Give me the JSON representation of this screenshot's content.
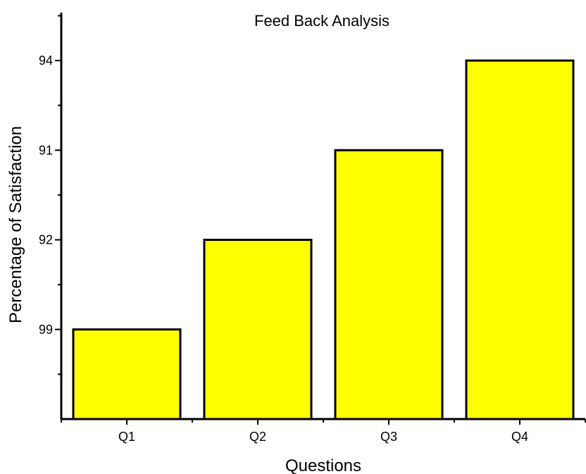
{
  "chart_data": {
    "type": "bar",
    "title": "Feed Back Analysis",
    "xlabel": "Questions",
    "ylabel": "Percentage of Satisfaction",
    "categories": [
      "Q1",
      "Q2",
      "Q3",
      "Q4"
    ],
    "values": [
      1,
      2,
      3,
      4
    ],
    "ylim": [
      0,
      4
    ],
    "yticks": [
      1,
      2,
      3,
      4
    ],
    "ytick_labels": [
      "99",
      "92",
      "91",
      "94"
    ],
    "grid": false,
    "legend": "none",
    "bar_color": "#ffff00",
    "edge_color": "#000000"
  }
}
